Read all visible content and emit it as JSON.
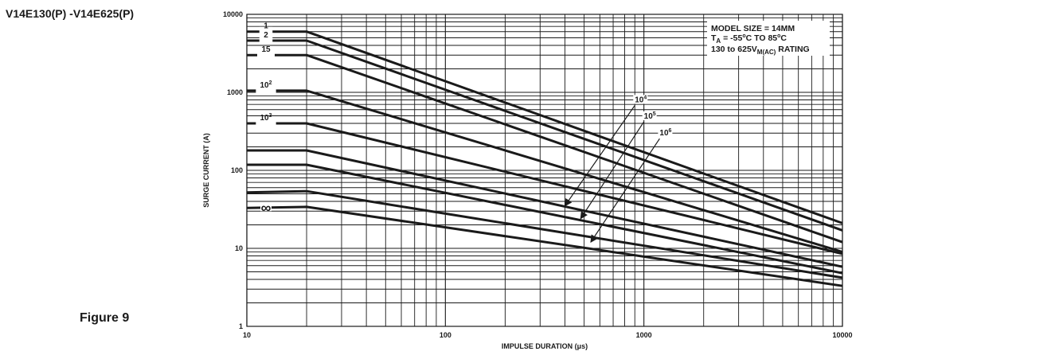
{
  "page": {
    "part_title": "V14E130(P) -V14E625(P)",
    "figure_label": "Figure 9"
  },
  "chart_data": {
    "type": "line",
    "title": "",
    "xlabel": "IMPULSE DURATION  (μs)",
    "ylabel": "SURGE CURRENT (A)",
    "x_scale": "log",
    "y_scale": "log",
    "xlim": [
      10,
      10000
    ],
    "ylim": [
      1,
      10000
    ],
    "x_ticks": [
      {
        "value": 10,
        "label": "10"
      },
      {
        "value": 100,
        "label": "100"
      },
      {
        "value": 1000,
        "label": "1000"
      },
      {
        "value": 10000,
        "label": "10000"
      }
    ],
    "y_ticks": [
      {
        "value": 1,
        "label": "1"
      },
      {
        "value": 10,
        "label": "10"
      },
      {
        "value": 100,
        "label": "100"
      },
      {
        "value": 1000,
        "label": "1000"
      },
      {
        "value": 10000,
        "label": "10000"
      }
    ],
    "grid": true,
    "line_color": "#1a1a1a",
    "series": [
      {
        "label": "1",
        "label_sup": "",
        "points": [
          [
            10,
            6000
          ],
          [
            20,
            6000
          ],
          [
            10000,
            21
          ]
        ]
      },
      {
        "label": "2",
        "label_sup": "",
        "points": [
          [
            10,
            4600
          ],
          [
            20,
            4600
          ],
          [
            10000,
            17
          ]
        ]
      },
      {
        "label": "15",
        "label_sup": "",
        "points": [
          [
            10,
            3000
          ],
          [
            20,
            3000
          ],
          [
            10000,
            12
          ]
        ]
      },
      {
        "label": "10",
        "label_sup": "2",
        "points": [
          [
            10,
            1050
          ],
          [
            20,
            1050
          ],
          [
            10000,
            9
          ]
        ]
      },
      {
        "label": "10",
        "label_sup": "3",
        "points": [
          [
            10,
            400
          ],
          [
            20,
            400
          ],
          [
            10000,
            8.5
          ]
        ]
      },
      {
        "label": "",
        "label_sup": "",
        "points": [
          [
            10,
            180
          ],
          [
            20,
            180
          ],
          [
            10000,
            5.8
          ]
        ]
      },
      {
        "label": "",
        "label_sup": "",
        "points": [
          [
            10,
            118
          ],
          [
            20,
            118
          ],
          [
            10000,
            4.8
          ]
        ]
      },
      {
        "label": "",
        "label_sup": "",
        "points": [
          [
            10,
            52
          ],
          [
            20,
            54
          ],
          [
            10000,
            4.2
          ]
        ]
      },
      {
        "label": "∞",
        "label_sup": "",
        "points": [
          [
            10,
            33
          ],
          [
            20,
            34
          ],
          [
            10000,
            3.3
          ]
        ]
      }
    ],
    "annotations": [
      {
        "label": "10",
        "label_sup": "4",
        "anchor": [
          900,
          680
        ],
        "tip": [
          400,
          35
        ]
      },
      {
        "label": "10",
        "label_sup": "5",
        "anchor": [
          1000,
          420
        ],
        "tip": [
          480,
          24
        ]
      },
      {
        "label": "10",
        "label_sup": "6",
        "anchor": [
          1200,
          255
        ],
        "tip": [
          540,
          12
        ]
      }
    ],
    "info_box": {
      "line1": "MODEL SIZE = 14MM",
      "line2_main": "T",
      "line2_sub": "A",
      "line2_rest1": " = -55",
      "line2_sup1": "o",
      "line2_rest2": "C TO 85",
      "line2_sup2": "o",
      "line2_rest3": "C",
      "line3_main": "130 to 625V",
      "line3_sub": "M(AC)",
      "line3_rest": " RATING"
    }
  }
}
